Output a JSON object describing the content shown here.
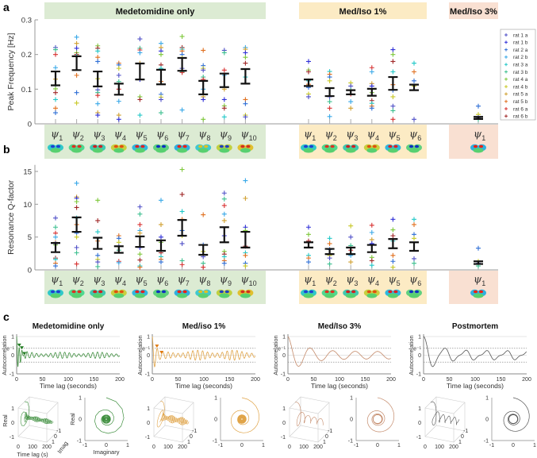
{
  "figure": {
    "panel_labels": [
      "a",
      "b",
      "c"
    ]
  },
  "legend": {
    "position": "right",
    "entries": [
      {
        "label": "rat 1 a",
        "color": "#5050c8"
      },
      {
        "label": "rat 1 b",
        "color": "#3030d8"
      },
      {
        "label": "rat 2 a",
        "color": "#2f6fd6"
      },
      {
        "label": "rat 2 b",
        "color": "#38a8e8"
      },
      {
        "label": "rat 3 a",
        "color": "#22c8c8"
      },
      {
        "label": "rat 3 b",
        "color": "#3cbf8f"
      },
      {
        "label": "rat 4 a",
        "color": "#7ec83a"
      },
      {
        "label": "rat 4 b",
        "color": "#c8c828"
      },
      {
        "label": "rat 5 a",
        "color": "#d0a030"
      },
      {
        "label": "rat 5 b",
        "color": "#e07020"
      },
      {
        "label": "rat 6 a",
        "color": "#d83030"
      },
      {
        "label": "rat 6 b",
        "color": "#a02828"
      }
    ]
  },
  "groups": [
    {
      "name": "Medetomidine only",
      "color": "#dcebd3"
    },
    {
      "name": "Med/Iso 1%",
      "color": "#fcebc4"
    },
    {
      "name": "Med/Iso 3%",
      "color": "#f9e0d2"
    }
  ],
  "chart_data": [
    {
      "type": "scatter",
      "panel": "a",
      "ylabel": "Peak Frequency [Hz]",
      "ylim": [
        0,
        0.3
      ],
      "yticks": [
        "0",
        "0.1",
        "0.2",
        "0.3"
      ],
      "ytick_values": [
        0,
        0.1,
        0.2,
        0.3
      ],
      "groups": [
        {
          "group": 0,
          "components": [
            {
              "symbol": "ψ",
              "sub": "1",
              "err": [
                0.111,
                0.151
              ],
              "points": [
                0.22,
                0.214,
                0.2,
                0.162,
                0.129,
                0.112,
                0.101,
                0.09,
                0.07,
                0.045,
                0.032
              ]
            },
            {
              "symbol": "ψ",
              "sub": "2",
              "err": [
                0.155,
                0.195
              ],
              "points": [
                0.25,
                0.232,
                0.218,
                0.205,
                0.2,
                0.195,
                0.14,
                0.09,
                0.06
              ]
            },
            {
              "symbol": "ψ",
              "sub": "3",
              "err": [
                0.108,
                0.151
              ],
              "points": [
                0.225,
                0.218,
                0.21,
                0.192,
                0.18,
                0.13,
                0.098,
                0.09,
                0.082,
                0.058,
                0.032,
                0.025
              ]
            },
            {
              "symbol": "ψ",
              "sub": "4",
              "err": [
                0.084,
                0.116
              ],
              "points": [
                0.175,
                0.17,
                0.16,
                0.14,
                0.122,
                0.1,
                0.065,
                0.025,
                0.013
              ]
            },
            {
              "symbol": "ψ",
              "sub": "5",
              "err": [
                0.128,
                0.174
              ],
              "points": [
                0.245,
                0.218,
                0.213,
                0.205,
                0.175,
                0.128,
                0.078,
                0.07,
                0.025
              ]
            },
            {
              "symbol": "ψ",
              "sub": "6",
              "err": [
                0.114,
                0.156
              ],
              "points": [
                0.232,
                0.22,
                0.21,
                0.2,
                0.17,
                0.16,
                0.122,
                0.085,
                0.077,
                0.07,
                0.032
              ]
            },
            {
              "symbol": "ψ",
              "sub": "7",
              "err": [
                0.153,
                0.19
              ],
              "points": [
                0.252,
                0.22,
                0.215,
                0.21,
                0.2,
                0.19,
                0.16,
                0.15,
                0.148,
                0.04
              ]
            },
            {
              "symbol": "ψ",
              "sub": "8",
              "err": [
                0.085,
                0.124
              ],
              "points": [
                0.212,
                0.168,
                0.16,
                0.155,
                0.135,
                0.128,
                0.1,
                0.078,
                0.07,
                0.013
              ]
            },
            {
              "symbol": "ψ",
              "sub": "9",
              "err": [
                0.106,
                0.145
              ],
              "points": [
                0.212,
                0.205,
                0.155,
                0.14,
                0.1,
                0.07,
                0.052,
                0.045,
                0.02
              ]
            },
            {
              "symbol": "ψ",
              "sub": "10",
              "err": [
                0.116,
                0.158
              ],
              "points": [
                0.22,
                0.215,
                0.205,
                0.192,
                0.175,
                0.135,
                0.07,
                0.058,
                0.025,
                0.02
              ]
            }
          ]
        },
        {
          "group": 1,
          "components": [
            {
              "symbol": "ψ",
              "sub": "1",
              "err": [
                0.109,
                0.128
              ],
              "points": [
                0.18,
                0.155,
                0.15,
                0.124,
                0.114,
                0.105,
                0.086,
                0.078
              ]
            },
            {
              "symbol": "ψ",
              "sub": "2",
              "err": [
                0.08,
                0.103
              ],
              "points": [
                0.151,
                0.143,
                0.135,
                0.124,
                0.078,
                0.064,
                0.045,
                0.021
              ]
            },
            {
              "symbol": "ψ",
              "sub": "3",
              "err": [
                0.085,
                0.097
              ],
              "points": [
                0.118,
                0.109,
                0.097,
                0.086,
                0.064,
                0.045
              ]
            },
            {
              "symbol": "ψ",
              "sub": "4",
              "err": [
                0.081,
                0.101
              ],
              "points": [
                0.162,
                0.15,
                0.116,
                0.109,
                0.09,
                0.067,
                0.059,
                0.051,
                0.045
              ]
            },
            {
              "symbol": "ψ",
              "sub": "5",
              "err": [
                0.098,
                0.135
              ],
              "points": [
                0.214,
                0.2,
                0.18,
                0.15,
                0.113,
                0.097,
                0.078,
                0.051,
                0.038,
                0.013
              ]
            },
            {
              "symbol": "ψ",
              "sub": "6",
              "err": [
                0.097,
                0.113
              ],
              "points": [
                0.175,
                0.15,
                0.124,
                0.109,
                0.013
              ]
            }
          ]
        },
        {
          "group": 2,
          "components": [
            {
              "symbol": "ψ",
              "sub": "1",
              "err": [
                0.014,
                0.02
              ],
              "points": [
                0.051,
                0.027,
                0.018,
                0.013
              ]
            }
          ]
        }
      ]
    },
    {
      "type": "scatter",
      "panel": "b",
      "ylabel": "Resonance Q-factor",
      "ylim": [
        0,
        16
      ],
      "yticks": [
        "0",
        "5",
        "10",
        "15"
      ],
      "ytick_values": [
        0,
        5,
        10,
        15
      ],
      "groups": [
        {
          "group": 0,
          "components": [
            {
              "symbol": "ψ",
              "sub": "1",
              "err": [
                2.7,
                4.1
              ],
              "points": [
                7.9,
                6.5,
                5.6,
                5.0,
                4.2,
                4.0,
                3.8,
                1.8,
                1.6,
                1.0,
                0.6
              ]
            },
            {
              "symbol": "ψ",
              "sub": "2",
              "err": [
                5.8,
                8.0
              ],
              "points": [
                13.2,
                11.1,
                10.9,
                10.4,
                9.5,
                7.9,
                6.9,
                5.6,
                5.0,
                3.4,
                2.6,
                0.9
              ]
            },
            {
              "symbol": "ψ",
              "sub": "3",
              "err": [
                3.2,
                4.9
              ],
              "points": [
                10.6,
                7.5,
                5.8,
                4.4,
                2.2,
                1.6,
                1.2,
                0.5
              ]
            },
            {
              "symbol": "ψ",
              "sub": "4",
              "err": [
                2.6,
                3.6
              ],
              "points": [
                5.2,
                4.8,
                4.2,
                3.6,
                3.0,
                1.3,
                1.1
              ]
            },
            {
              "symbol": "ψ",
              "sub": "5",
              "err": [
                3.5,
                5.1
              ],
              "points": [
                9.6,
                8.5,
                6.9,
                6.0,
                5.6,
                3.4,
                2.4,
                1.5,
                0.6,
                0.4
              ]
            },
            {
              "symbol": "ψ",
              "sub": "6",
              "err": [
                2.9,
                4.5
              ],
              "points": [
                10.6,
                6.9,
                5.0,
                4.2,
                2.6,
                2.0,
                1.6,
                1.2
              ]
            },
            {
              "symbol": "ψ",
              "sub": "7",
              "err": [
                5.2,
                7.6
              ],
              "points": [
                15.3,
                11.5,
                8.9,
                7.7,
                6.0,
                5.2,
                4.0,
                1.4,
                0.8
              ]
            },
            {
              "symbol": "ψ",
              "sub": "8",
              "err": [
                2.3,
                3.8
              ],
              "points": [
                8.4,
                3.8,
                2.8,
                2.0,
                1.0,
                0.4
              ]
            },
            {
              "symbol": "ψ",
              "sub": "9",
              "err": [
                4.2,
                6.5
              ],
              "points": [
                11.7,
                10.8,
                9.8,
                8.5,
                7.5,
                5.2,
                2.8,
                2.4,
                2.0,
                1.4,
                1.0
              ]
            },
            {
              "symbol": "ψ",
              "sub": "10",
              "err": [
                3.4,
                5.8
              ],
              "points": [
                13.6,
                10.9,
                6.5,
                6.0,
                3.6,
                2.6,
                2.2,
                1.0,
                0.6
              ]
            }
          ]
        },
        {
          "group": 1,
          "components": [
            {
              "symbol": "ψ",
              "sub": "1",
              "err": [
                3.4,
                4.2
              ],
              "points": [
                6.5,
                5.4,
                4.4,
                2.2,
                1.8,
                1.2
              ]
            },
            {
              "symbol": "ψ",
              "sub": "2",
              "err": [
                2.4,
                3.2
              ],
              "points": [
                4.8,
                4.0,
                3.1,
                2.2,
                1.8,
                0.9
              ]
            },
            {
              "symbol": "ψ",
              "sub": "3",
              "err": [
                2.4,
                3.4
              ],
              "points": [
                6.7,
                5.0,
                3.7,
                3.0,
                2.2,
                1.2
              ]
            },
            {
              "symbol": "ψ",
              "sub": "4",
              "err": [
                2.7,
                3.8
              ],
              "points": [
                6.8,
                5.7,
                4.6,
                4.0,
                1.9,
                1.4,
                0.7
              ]
            },
            {
              "symbol": "ψ",
              "sub": "5",
              "err": [
                3.3,
                4.7
              ],
              "points": [
                7.7,
                6.1,
                5.2,
                4.4,
                2.2,
                1.3,
                0.4
              ]
            },
            {
              "symbol": "ψ",
              "sub": "6",
              "err": [
                2.9,
                4.2
              ],
              "points": [
                7.7,
                6.9,
                5.4,
                4.8,
                1.7,
                1.0
              ]
            }
          ]
        },
        {
          "group": 2,
          "components": [
            {
              "symbol": "ψ",
              "sub": "1",
              "err": [
                0.9,
                1.3
              ],
              "points": [
                3.3,
                1.3,
                1.0,
                0.6
              ]
            }
          ]
        }
      ]
    },
    {
      "type": "line",
      "panel": "c",
      "xlabel": "Time lag (seconds)",
      "ylabel": "Autocorrelation",
      "xlim": [
        0,
        200
      ],
      "ylim": [
        -1,
        1
      ],
      "xticks": [
        "0",
        "50",
        "100",
        "150",
        "200"
      ],
      "yticks": [
        "-1",
        "0",
        "e⁻¹",
        "1"
      ],
      "threshold_lines": [
        0.37,
        -0.37
      ],
      "phase_axes": {
        "real_label": "Real",
        "imag_label": "Imag",
        "time_label": "Time lag (s)",
        "imaginary_label": "Imaginary",
        "ticks_pm1": [
          "-1",
          "0",
          "1"
        ],
        "time_ticks": [
          "0",
          "100",
          "200"
        ]
      },
      "series": [
        {
          "title": "Medetomidine only",
          "color": "#3f8f3f",
          "peak_markers": [
            5,
            10,
            15
          ],
          "marker_color": "#1f7a1f",
          "osc_freq": 0.2,
          "decay": 6,
          "sustain_amp": 0.17,
          "sustain_freq": 0.11,
          "show_labels": true
        },
        {
          "title": "Med/iso 1%",
          "color": "#e0a448",
          "peak_markers": [
            9,
            18
          ],
          "marker_color": "#e07a10",
          "osc_freq": 0.11,
          "decay": 10,
          "sustain_amp": 0.27,
          "sustain_freq": 0.105,
          "show_labels": false
        },
        {
          "title": "Med/Iso 3%",
          "color": "#c48a6a",
          "peak_markers": [],
          "osc_freq": 0.023,
          "decay": 30,
          "sustain_amp": 0.2,
          "sustain_freq": 0.023,
          "show_labels": false
        },
        {
          "title": "Postmortem",
          "color": "#555555",
          "peak_markers": [],
          "osc_freq": 0.025,
          "decay": 25,
          "sustain_amp": 0.2,
          "sustain_freq": 0.025,
          "show_labels": false
        }
      ]
    }
  ]
}
